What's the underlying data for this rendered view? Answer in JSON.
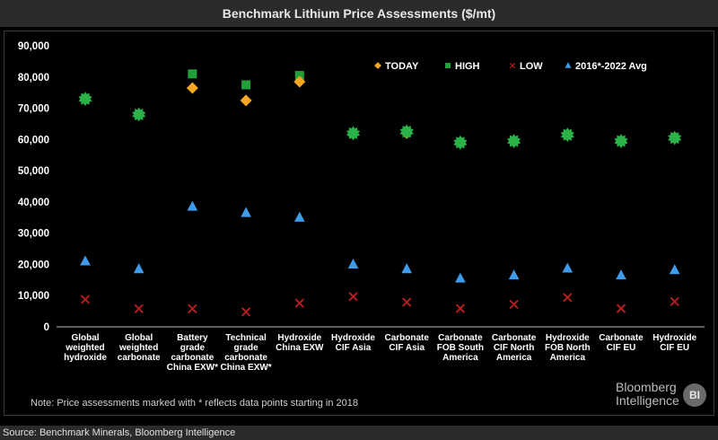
{
  "header": {
    "title": "Benchmark Lithium Price Assessments ($/mt)"
  },
  "note": "Note: Price assessments marked with * reflects data points starting in 2018",
  "brand": {
    "line1": "Bloomberg",
    "line2": "Intelligence",
    "badge": "BI"
  },
  "source": "Source: Benchmark Minerals, Bloomberg Intelligence",
  "colors": {
    "today": "#f5a623",
    "high": "#1fa13a",
    "low": "#b01e1e",
    "avg": "#3d9be9",
    "marker_star": "#2bb34a"
  },
  "chart_data": {
    "type": "scatter",
    "categories": [
      [
        "Global",
        "weighted",
        "hydroxide"
      ],
      [
        "Global",
        "weighted",
        "carbonate"
      ],
      [
        "Battery",
        "grade",
        "carbonate",
        "China EXW*"
      ],
      [
        "Technical",
        "grade",
        "carbonate",
        "China EXW*"
      ],
      [
        "Hydroxide",
        "China EXW"
      ],
      [
        "Hydroxide",
        "CIF Asia"
      ],
      [
        "Carbonate",
        "CIF Asia"
      ],
      [
        "Carbonate",
        "FOB South",
        "America"
      ],
      [
        "Carbonate",
        "CIF North",
        "America"
      ],
      [
        "Hydroxide",
        "FOB North",
        "America"
      ],
      [
        "Carbonate",
        "CIF EU"
      ],
      [
        "Hydroxide",
        "CIF EU"
      ]
    ],
    "series": [
      {
        "name": "TODAY",
        "marker": "diamond",
        "values": [
          73000,
          68000,
          76500,
          72500,
          78500,
          62000,
          62000,
          59000,
          59500,
          61500,
          59500,
          60500
        ]
      },
      {
        "name": "HIGH",
        "marker": "square",
        "values": [
          73000,
          68000,
          81000,
          77500,
          80500,
          62000,
          62500,
          59000,
          59500,
          61500,
          59500,
          60500
        ]
      },
      {
        "name": "LOW",
        "marker": "x",
        "values": [
          8800,
          5800,
          5800,
          4800,
          7600,
          9700,
          7900,
          5900,
          7200,
          9400,
          5900,
          8100
        ]
      },
      {
        "name": "2016*-2022 Avg",
        "marker": "triangle",
        "values": [
          21000,
          18500,
          38500,
          36500,
          35000,
          20000,
          18500,
          15500,
          16500,
          18700,
          16500,
          18200
        ]
      }
    ],
    "ylim": [
      0,
      90000
    ],
    "yticks": [
      "0",
      "10,000",
      "20,000",
      "30,000",
      "40,000",
      "50,000",
      "60,000",
      "70,000",
      "80,000",
      "90,000"
    ],
    "ytick_values": [
      0,
      10000,
      20000,
      30000,
      40000,
      50000,
      60000,
      70000,
      80000,
      90000
    ],
    "legend_position": "top-right",
    "grid": false
  }
}
